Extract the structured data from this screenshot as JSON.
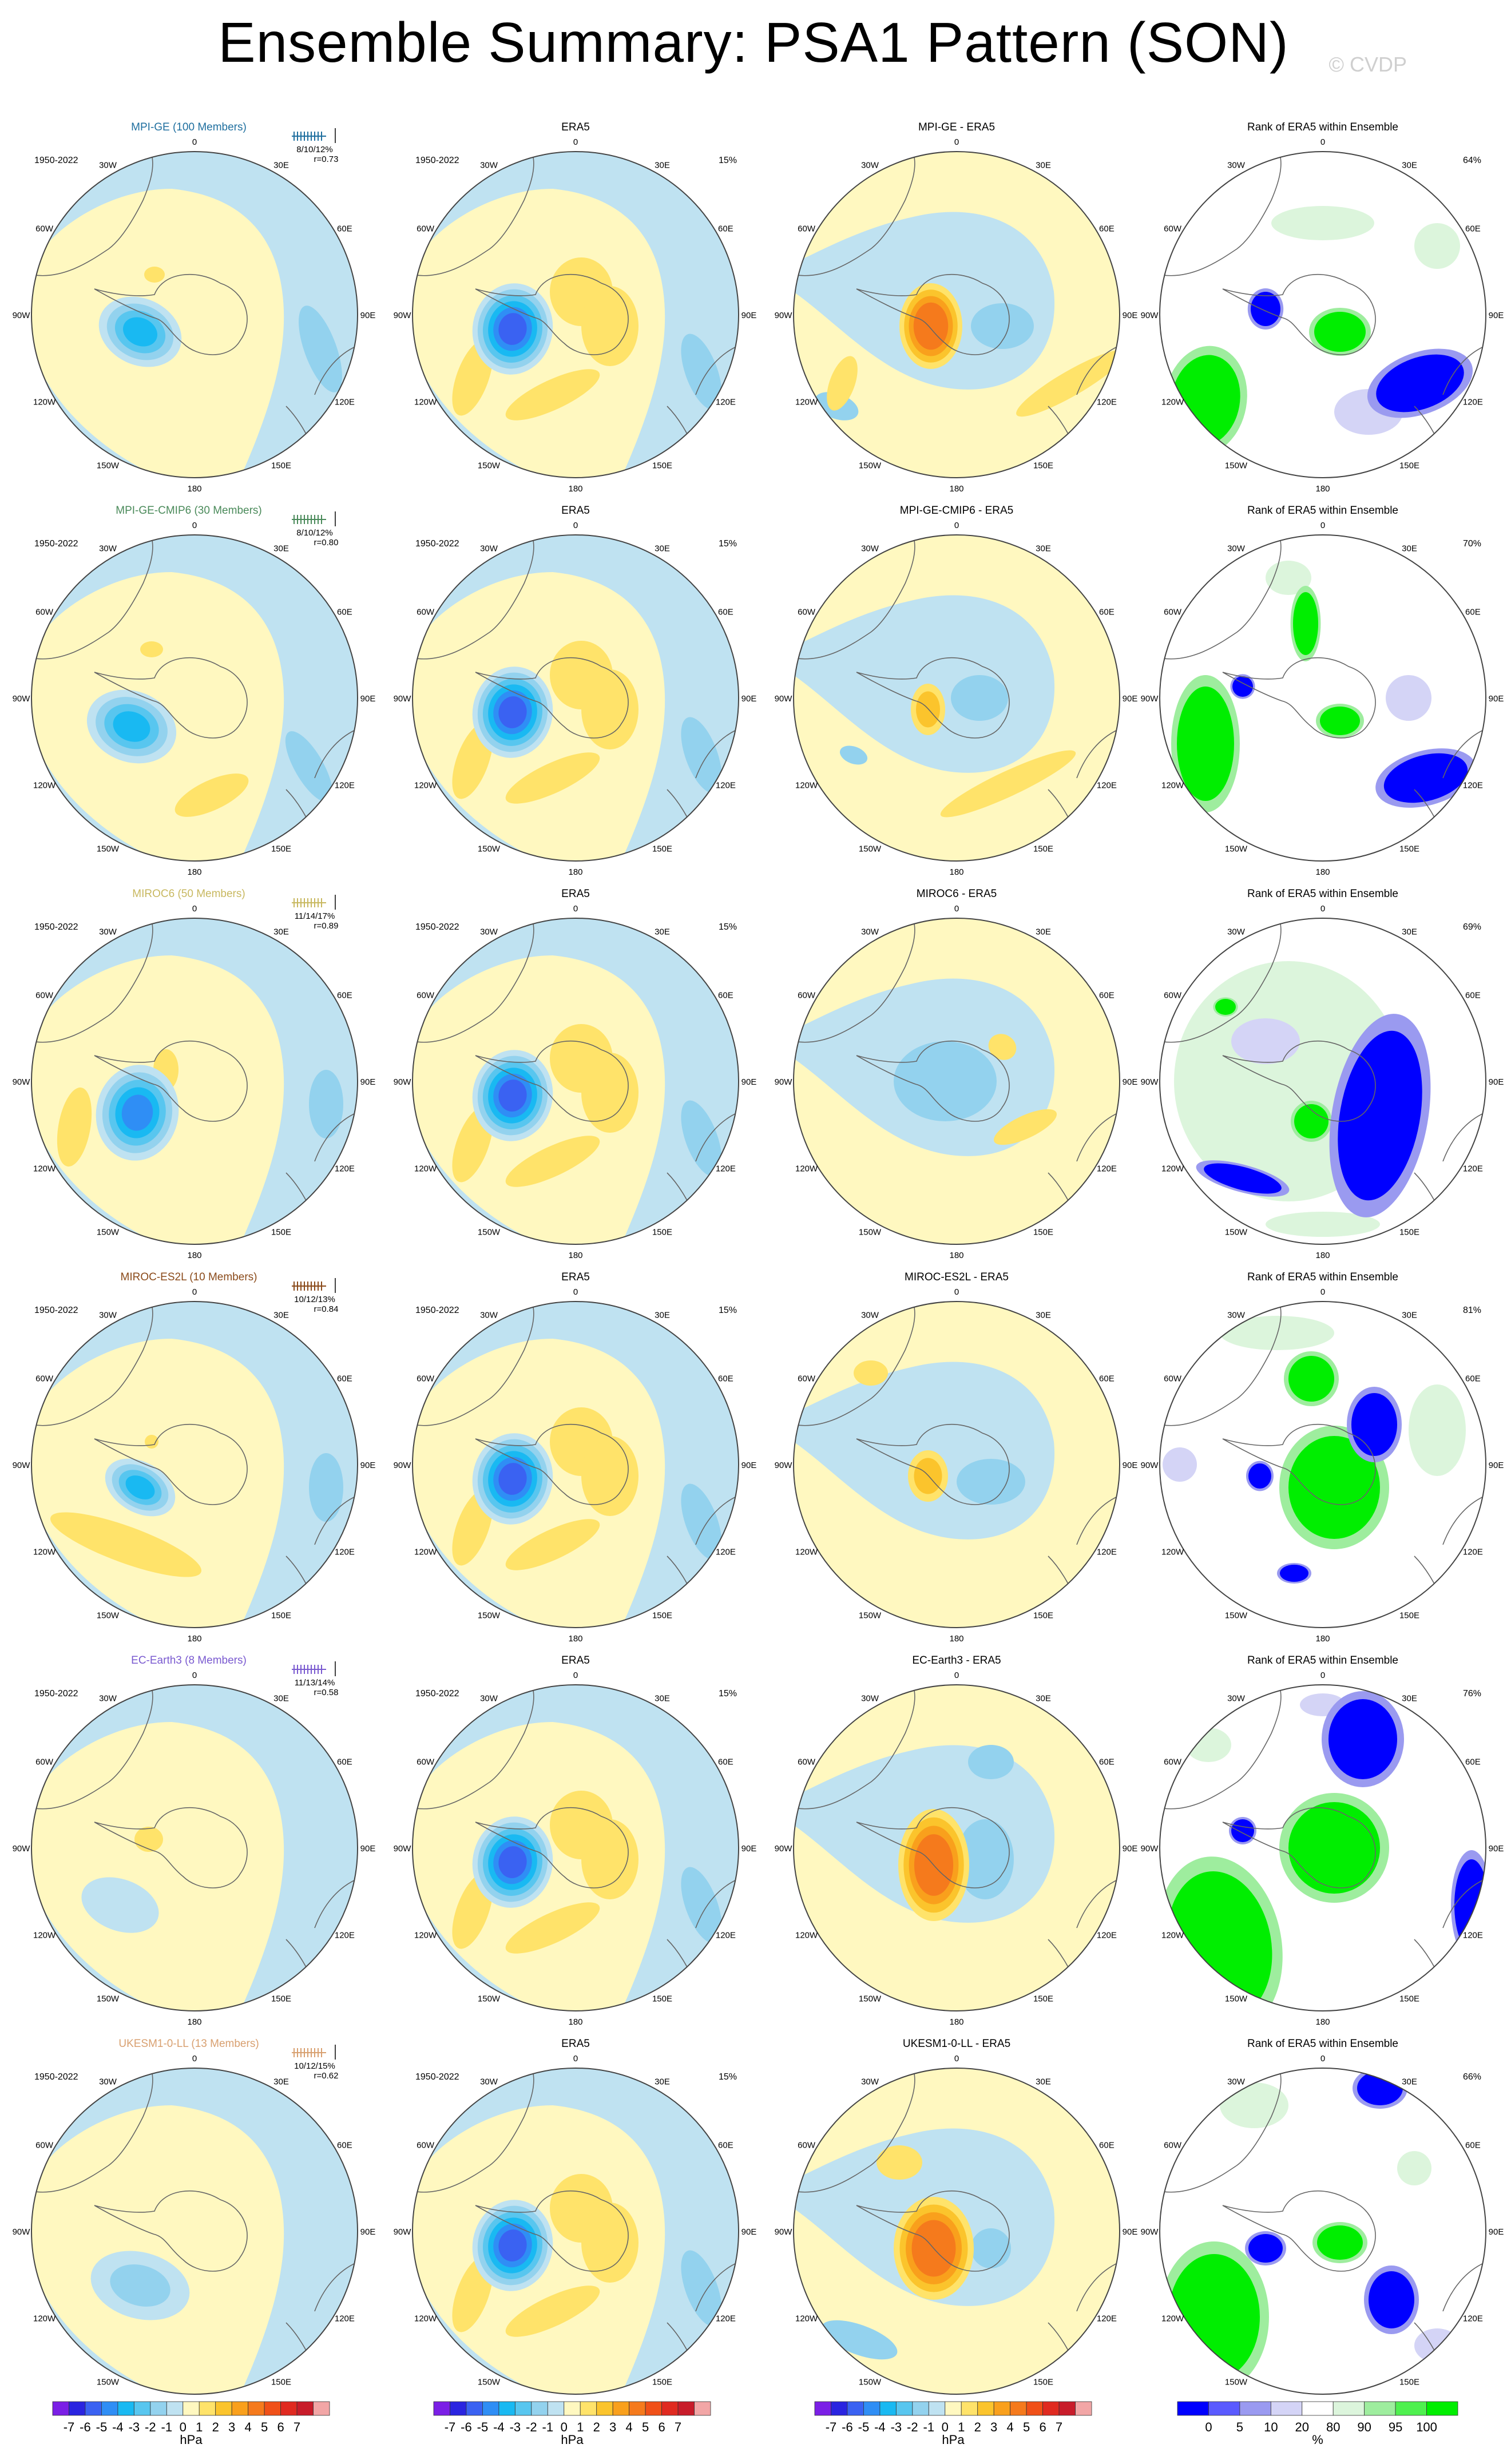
{
  "title": "Ensemble Summary: PSA1 Pattern (SON)",
  "copyright": "© CVDP",
  "period": "1950-2022",
  "colors": {
    "psl_levels": [
      "#7b1fe6",
      "#2a24e0",
      "#3a62f2",
      "#2f8ef5",
      "#19b9f2",
      "#58c6ef",
      "#93d2ee",
      "#bfe2f1",
      "#fff8c0",
      "#ffe36a",
      "#fbc42c",
      "#f9a01c",
      "#f57a1c",
      "#f05018",
      "#e02a20",
      "#c81c2a",
      "#f2a6a6"
    ],
    "rank_levels": [
      "#0000ff",
      "#5a5aff",
      "#9a9af0",
      "#d4d4f6",
      "#ffffff",
      "#dcf5dc",
      "#9eed9e",
      "#4ff04f",
      "#00ee00"
    ]
  },
  "meridian_labels": [
    "0",
    "30E",
    "60E",
    "90E",
    "120E",
    "150E",
    "180",
    "150W",
    "120W",
    "90W",
    "60W",
    "30W"
  ],
  "rows": [
    {
      "model": "MPI-GE (100 Members)",
      "model_color": "#1f6f9f",
      "stats": "8/10/12%",
      "r": "r=0.73",
      "diff_title": "MPI-GE - ERA5",
      "era_pct": "15%",
      "rank_pct": "64%"
    },
    {
      "model": "MPI-GE-CMIP6 (30 Members)",
      "model_color": "#4a8a5a",
      "stats": "8/10/12%",
      "r": "r=0.80",
      "diff_title": "MPI-GE-CMIP6 - ERA5",
      "era_pct": "15%",
      "rank_pct": "70%"
    },
    {
      "model": "MIROC6 (50 Members)",
      "model_color": "#c8b860",
      "stats": "11/14/17%",
      "r": "r=0.89",
      "diff_title": "MIROC6 - ERA5",
      "era_pct": "15%",
      "rank_pct": "69%"
    },
    {
      "model": "MIROC-ES2L (10 Members)",
      "model_color": "#8a4a1a",
      "stats": "10/12/13%",
      "r": "r=0.84",
      "diff_title": "MIROC-ES2L - ERA5",
      "era_pct": "15%",
      "rank_pct": "81%"
    },
    {
      "model": "EC-Earth3 (8 Members)",
      "model_color": "#7a5ad0",
      "stats": "11/13/14%",
      "r": "r=0.58",
      "diff_title": "EC-Earth3 - ERA5",
      "era_pct": "15%",
      "rank_pct": "76%"
    },
    {
      "model": "UKESM1-0-LL (13 Members)",
      "model_color": "#d8a070",
      "stats": "10/12/15%",
      "r": "r=0.62",
      "diff_title": "UKESM1-0-LL - ERA5",
      "era_pct": "15%",
      "rank_pct": "66%"
    }
  ],
  "era_title": "ERA5",
  "rank_title": "Rank of ERA5 within Ensemble",
  "colorbars": {
    "psl": {
      "ticks": [
        "-7",
        "-6",
        "-5",
        "-4",
        "-3",
        "-2",
        "-1",
        "0",
        "1",
        "2",
        "3",
        "4",
        "5",
        "6",
        "7"
      ],
      "unit": "hPa"
    },
    "rank": {
      "ticks": [
        "0",
        "5",
        "10",
        "20",
        "80",
        "90",
        "95",
        "100"
      ],
      "unit": "%"
    }
  },
  "chart_data": {
    "type": "heatmap",
    "title": "Ensemble Summary: PSA1 Pattern (SON)",
    "panel_titles": [
      "ERA5",
      "Rank of ERA5 within Ensemble"
    ],
    "projection": "south polar stereographic",
    "period": "1950-2022",
    "variable_units": [
      "hPa",
      "%"
    ],
    "psl_contour_levels": [
      -7,
      -6,
      -5,
      -4,
      -3,
      -2,
      -1,
      0,
      1,
      2,
      3,
      4,
      5,
      6,
      7
    ],
    "rank_levels": [
      0,
      5,
      10,
      20,
      80,
      90,
      95,
      100
    ],
    "series": [
      {
        "name": "MPI-GE (100 Members)",
        "pct_variance": [
          8,
          10,
          12
        ],
        "pattern_correlation": 0.73,
        "rank_pct": 64
      },
      {
        "name": "MPI-GE-CMIP6 (30 Members)",
        "pct_variance": [
          8,
          10,
          12
        ],
        "pattern_correlation": 0.8,
        "rank_pct": 70
      },
      {
        "name": "MIROC6 (50 Members)",
        "pct_variance": [
          11,
          14,
          17
        ],
        "pattern_correlation": 0.89,
        "rank_pct": 69
      },
      {
        "name": "MIROC-ES2L (10 Members)",
        "pct_variance": [
          10,
          12,
          13
        ],
        "pattern_correlation": 0.84,
        "rank_pct": 81
      },
      {
        "name": "EC-Earth3 (8 Members)",
        "pct_variance": [
          11,
          13,
          14
        ],
        "pattern_correlation": 0.58,
        "rank_pct": 76
      },
      {
        "name": "UKESM1-0-LL (13 Members)",
        "pct_variance": [
          10,
          12,
          15
        ],
        "pattern_correlation": 0.62,
        "rank_pct": 66
      }
    ],
    "reference": {
      "name": "ERA5",
      "pct_variance": 15
    }
  }
}
